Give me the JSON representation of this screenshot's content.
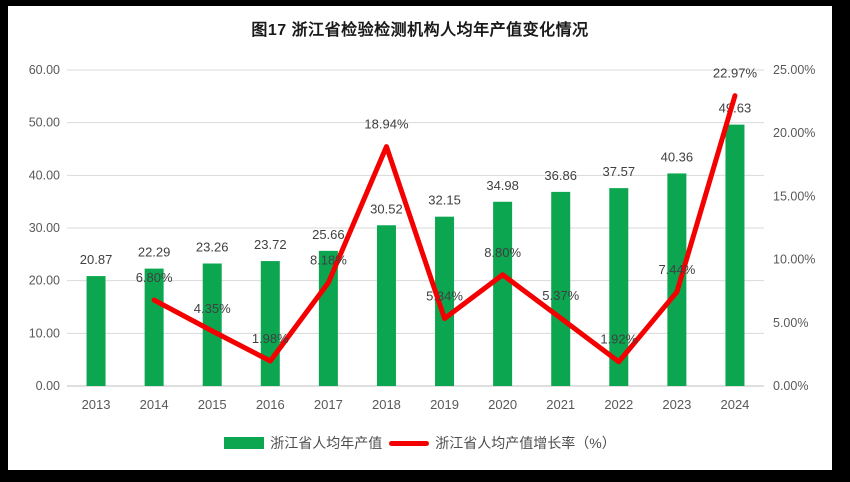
{
  "title": "图17  浙江省检验检测机构人均年产值变化情况",
  "chart_data": {
    "type": "bar+line",
    "title": "图17  浙江省检验检测机构人均年产值变化情况",
    "categories": [
      "2013",
      "2014",
      "2015",
      "2016",
      "2017",
      "2018",
      "2019",
      "2020",
      "2021",
      "2022",
      "2023",
      "2024"
    ],
    "series": [
      {
        "name": "浙江省人均年产值",
        "type": "bar",
        "axis": "left",
        "color": "#0CA650",
        "values": [
          20.87,
          22.29,
          23.26,
          23.72,
          25.66,
          30.52,
          32.15,
          34.98,
          36.86,
          37.57,
          40.36,
          49.63
        ],
        "labels": [
          "20.87",
          "22.29",
          "23.26",
          "23.72",
          "25.66",
          "30.52",
          "32.15",
          "34.98",
          "36.86",
          "37.57",
          "40.36",
          "49.63"
        ]
      },
      {
        "name": "浙江省人均产值增长率（%）",
        "type": "line",
        "axis": "right",
        "color": "#F40000",
        "values": [
          null,
          6.8,
          4.35,
          1.98,
          8.18,
          18.94,
          5.34,
          8.8,
          5.37,
          1.92,
          7.44,
          22.97
        ],
        "labels": [
          null,
          "6.80%",
          "4.35%",
          "1.98%",
          "8.18%",
          "18.94%",
          "5.34%",
          "8.80%",
          "5.37%",
          "1.92%",
          "7.44%",
          "22.97%"
        ]
      }
    ],
    "left_axis": {
      "min": 0,
      "max": 60,
      "step": 10,
      "ticks": [
        "0.00",
        "10.00",
        "20.00",
        "30.00",
        "40.00",
        "50.00",
        "60.00"
      ]
    },
    "right_axis": {
      "min": 0,
      "max": 25,
      "step": 5,
      "ticks": [
        "0.00%",
        "5.00%",
        "10.00%",
        "15.00%",
        "20.00%",
        "25.00%"
      ]
    },
    "grid": true,
    "legend_position": "bottom",
    "colors": {
      "gridline": "#D9D9D9",
      "axis_line": "#BFBFBF",
      "tick_text": "#595959",
      "data_label": "#404040",
      "title_text": "#1A1A1A",
      "frame": "#000000",
      "plot_background": "#FFFFFF"
    }
  },
  "legend": {
    "items": [
      {
        "label": "浙江省人均年产值",
        "swatch": "bar",
        "color": "#0CA650"
      },
      {
        "label": "浙江省人均产值增长率（%）",
        "swatch": "line",
        "color": "#F40000"
      }
    ]
  }
}
